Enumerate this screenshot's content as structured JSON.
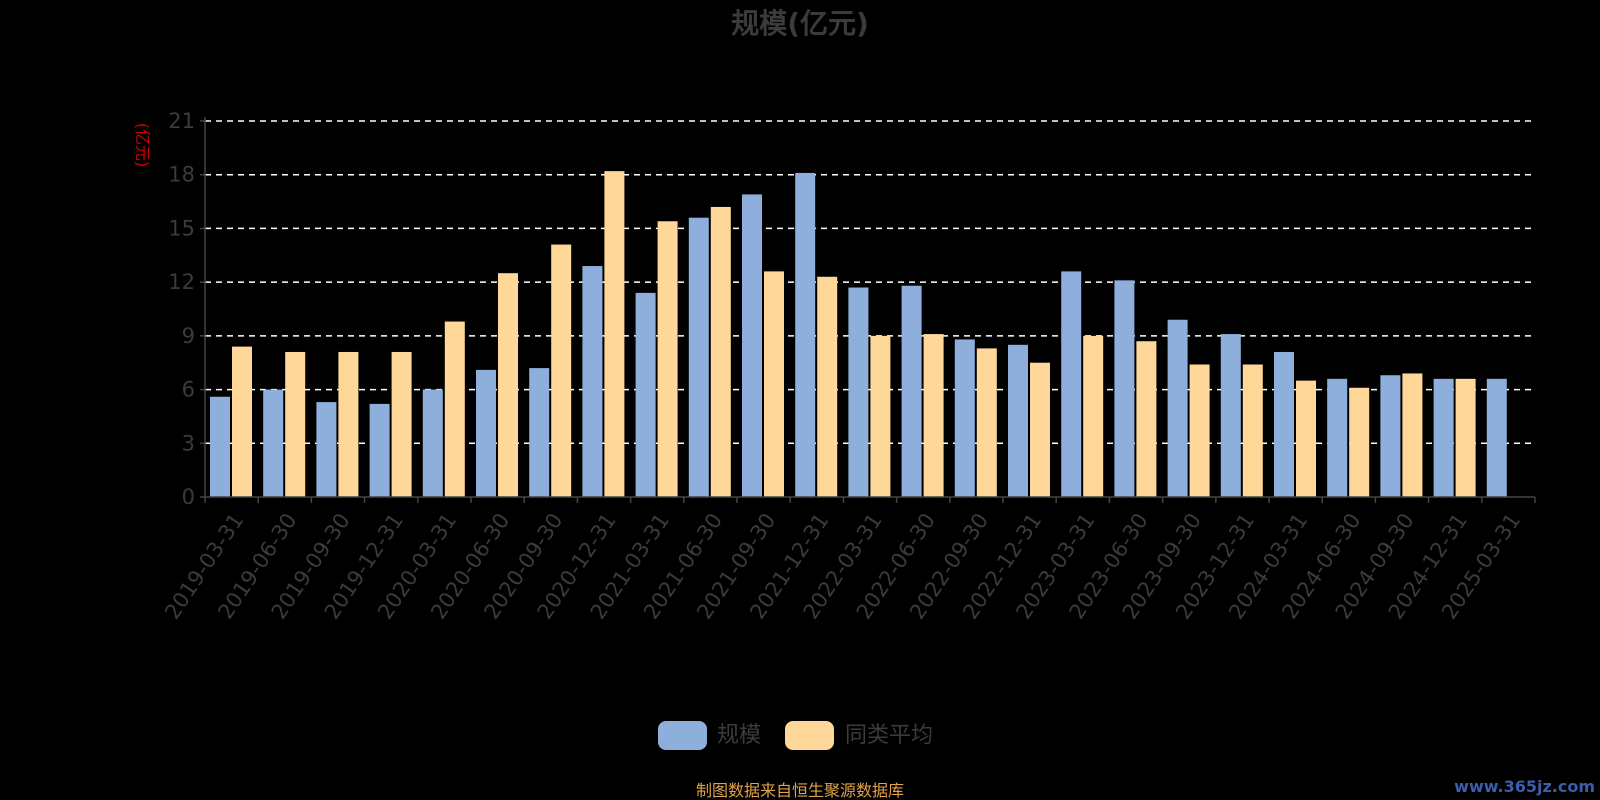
{
  "chart_data": {
    "type": "bar",
    "title": "规模(亿元)",
    "ylabel": "(亿元)",
    "ylim": [
      0,
      21
    ],
    "yticks": [
      0,
      3,
      6,
      9,
      12,
      15,
      18,
      21
    ],
    "grid": true,
    "legend_position": "bottom-center",
    "categories": [
      "2019-03-31",
      "2019-06-30",
      "2019-09-30",
      "2019-12-31",
      "2020-03-31",
      "2020-06-30",
      "2020-09-30",
      "2020-12-31",
      "2021-03-31",
      "2021-06-30",
      "2021-09-30",
      "2021-12-31",
      "2022-03-31",
      "2022-06-30",
      "2022-09-30",
      "2022-12-31",
      "2023-03-31",
      "2023-06-30",
      "2023-09-30",
      "2023-12-31",
      "2024-03-31",
      "2024-06-30",
      "2024-09-30",
      "2024-12-31",
      "2025-03-31"
    ],
    "series": [
      {
        "name": "规模",
        "color": "#8eaedc",
        "values": [
          5.6,
          6.0,
          5.3,
          5.2,
          6.0,
          7.1,
          7.2,
          12.9,
          11.4,
          15.6,
          16.9,
          18.1,
          11.7,
          11.8,
          8.8,
          8.5,
          12.6,
          12.1,
          9.9,
          9.1,
          8.1,
          6.6,
          6.8,
          6.6,
          6.6
        ]
      },
      {
        "name": "同类平均",
        "color": "#ffd899",
        "values": [
          8.4,
          8.1,
          8.1,
          8.1,
          9.8,
          12.5,
          14.1,
          18.2,
          15.4,
          16.2,
          12.6,
          12.3,
          9.0,
          9.1,
          8.3,
          7.5,
          9.0,
          8.7,
          7.4,
          7.4,
          6.5,
          6.1,
          6.9,
          6.6,
          null
        ]
      }
    ]
  },
  "footer": {
    "source": "制图数据来自恒生聚源数据库",
    "watermark": "www.365jz.com"
  },
  "colors": {
    "background": "#000000",
    "text": "#3b3b3b",
    "grid": "#ffffff",
    "unit": "#d40000",
    "source": "#e0a24a"
  }
}
